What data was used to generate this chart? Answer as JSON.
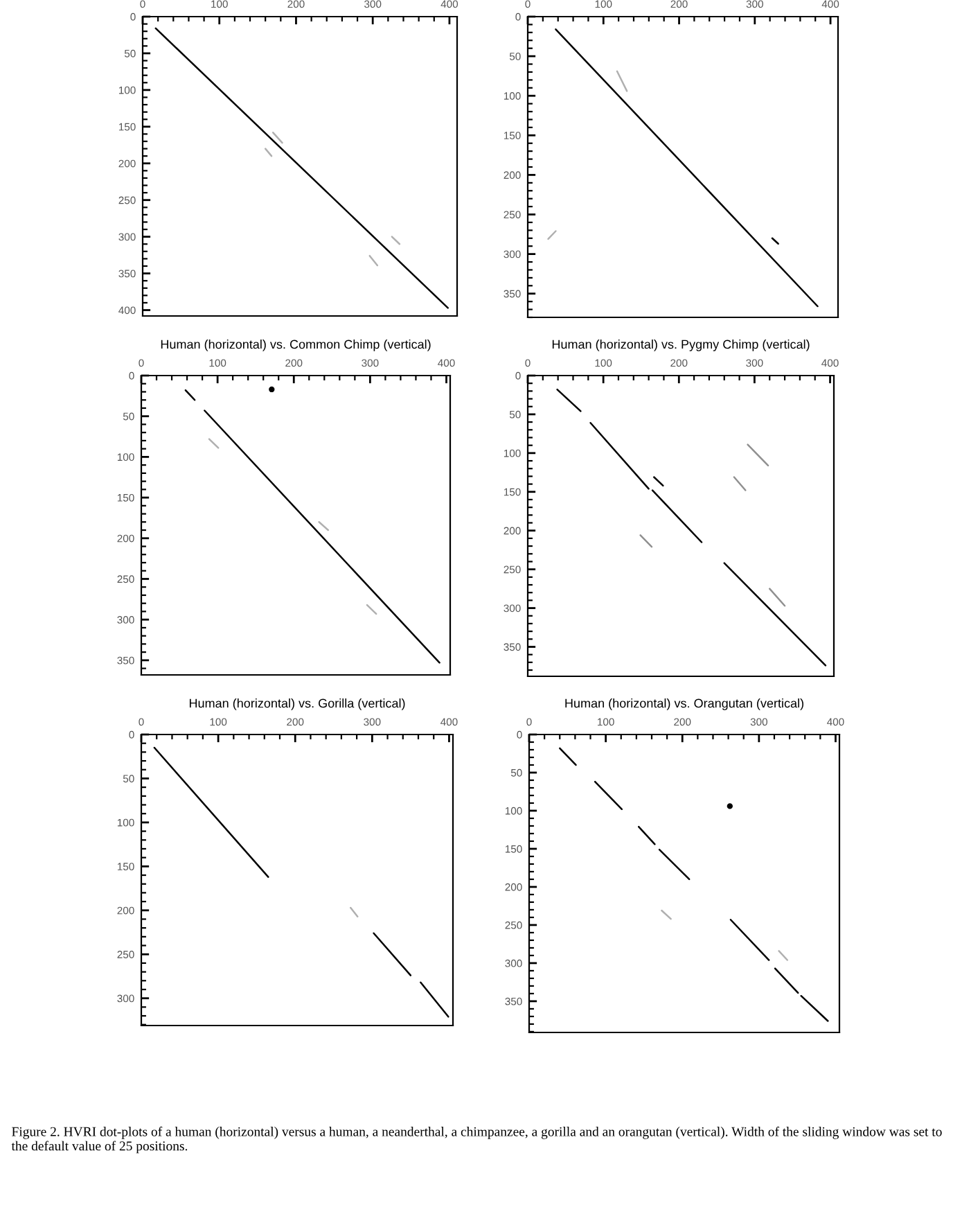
{
  "chart_data": [
    {
      "type": "line",
      "xlim": [
        0,
        410
      ],
      "ylim": [
        408,
        0
      ],
      "xticks": [
        0,
        100,
        200,
        300,
        400
      ],
      "yticks": [
        0,
        50,
        100,
        150,
        200,
        250,
        300,
        350,
        400
      ],
      "series": [
        {
          "color": "#000000",
          "x": [
            17,
            398
          ],
          "values": [
            16,
            397
          ]
        },
        {
          "color": "#b0b0b0",
          "x": [
            160,
            168
          ],
          "values": [
            180,
            190
          ]
        },
        {
          "color": "#b0b0b0",
          "x": [
            170,
            182
          ],
          "values": [
            158,
            172
          ]
        },
        {
          "color": "#b0b0b0",
          "x": [
            325,
            335
          ],
          "values": [
            300,
            310
          ]
        },
        {
          "color": "#b0b0b0",
          "x": [
            296,
            306
          ],
          "values": [
            326,
            339
          ]
        }
      ]
    },
    {
      "type": "line",
      "xlim": [
        0,
        410
      ],
      "ylim": [
        380,
        0
      ],
      "xticks": [
        0,
        100,
        200,
        300,
        400
      ],
      "yticks": [
        0,
        50,
        100,
        150,
        200,
        250,
        300,
        350
      ],
      "series": [
        {
          "color": "#000000",
          "x": [
            37,
            383
          ],
          "values": [
            16,
            366
          ]
        },
        {
          "color": "#000000",
          "x": [
            323,
            331
          ],
          "values": [
            280,
            287
          ]
        },
        {
          "color": "#b0b0b0",
          "x": [
            118,
            131
          ],
          "values": [
            69,
            94
          ]
        },
        {
          "color": "#b0b0b0",
          "x": [
            27,
            37
          ],
          "values": [
            281,
            271
          ]
        }
      ]
    },
    {
      "type": "line",
      "title": "Human (horizontal) vs. Common Chimp (vertical)",
      "xlim": [
        0,
        405
      ],
      "ylim": [
        368,
        0
      ],
      "xticks": [
        0,
        100,
        200,
        300,
        400
      ],
      "yticks": [
        0,
        50,
        100,
        150,
        200,
        250,
        300,
        350
      ],
      "series": [
        {
          "color": "#000000",
          "x": [
            58,
            70
          ],
          "values": [
            18,
            30
          ]
        },
        {
          "color": "#000000",
          "x": [
            83,
            391
          ],
          "values": [
            43,
            353
          ]
        },
        {
          "color": "#000000",
          "type": "scatter",
          "x": [
            171
          ],
          "values": [
            17
          ]
        },
        {
          "color": "#b0b0b0",
          "x": [
            89,
            101
          ],
          "values": [
            78,
            89
          ]
        },
        {
          "color": "#b0b0b0",
          "x": [
            233,
            245
          ],
          "values": [
            180,
            190
          ]
        },
        {
          "color": "#b0b0b0",
          "x": [
            296,
            308
          ],
          "values": [
            282,
            293
          ]
        }
      ]
    },
    {
      "type": "line",
      "title": "Human (horizontal) vs. Pygmy Chimp (vertical)",
      "xlim": [
        0,
        405
      ],
      "ylim": [
        388,
        0
      ],
      "xticks": [
        0,
        100,
        200,
        300,
        400
      ],
      "yticks": [
        0,
        50,
        100,
        150,
        200,
        250,
        300,
        350
      ],
      "series": [
        {
          "color": "#000000",
          "x": [
            39,
            70
          ],
          "values": [
            18,
            46
          ]
        },
        {
          "color": "#000000",
          "x": [
            83,
            160
          ],
          "values": [
            61,
            146
          ]
        },
        {
          "color": "#000000",
          "x": [
            165,
            230
          ],
          "values": [
            148,
            215
          ]
        },
        {
          "color": "#000000",
          "x": [
            260,
            394
          ],
          "values": [
            242,
            374
          ]
        },
        {
          "color": "#000000",
          "x": [
            167,
            179
          ],
          "values": [
            131,
            142
          ]
        },
        {
          "color": "#909090",
          "x": [
            291,
            318
          ],
          "values": [
            89,
            116
          ]
        },
        {
          "color": "#909090",
          "x": [
            273,
            288
          ],
          "values": [
            131,
            148
          ]
        },
        {
          "color": "#909090",
          "x": [
            320,
            340
          ],
          "values": [
            275,
            297
          ]
        },
        {
          "color": "#909090",
          "x": [
            149,
            164
          ],
          "values": [
            206,
            221
          ]
        }
      ]
    },
    {
      "type": "line",
      "title": "Human (horizontal) vs. Gorilla (vertical)",
      "xlim": [
        0,
        405
      ],
      "ylim": [
        331,
        0
      ],
      "xticks": [
        0,
        100,
        200,
        300,
        400
      ],
      "yticks": [
        0,
        50,
        100,
        150,
        200,
        250,
        300
      ],
      "series": [
        {
          "color": "#000000",
          "x": [
            17,
            165
          ],
          "values": [
            15,
            162
          ]
        },
        {
          "color": "#000000",
          "x": [
            302,
            350
          ],
          "values": [
            226,
            274
          ]
        },
        {
          "color": "#000000",
          "x": [
            363,
            399
          ],
          "values": [
            282,
            321
          ]
        },
        {
          "color": "#b0b0b0",
          "x": [
            272,
            281
          ],
          "values": [
            197,
            207
          ]
        }
      ]
    },
    {
      "type": "line",
      "title": "Human (horizontal) vs. Orangutan (vertical)",
      "xlim": [
        0,
        405
      ],
      "ylim": [
        391,
        0
      ],
      "xticks": [
        0,
        100,
        200,
        300,
        400
      ],
      "yticks": [
        0,
        50,
        100,
        150,
        200,
        250,
        300,
        350
      ],
      "annotations": [
        "Figure 2. HVRI dot-plots of a human (horizontal) versus a human, a neanderthal, a chimpanzee, a gorilla and an orangutan (vertical). Width of the sliding window was set to the default value of 25 positions."
      ],
      "series": [
        {
          "color": "#000000",
          "x": [
            40,
            61
          ],
          "values": [
            18,
            40
          ]
        },
        {
          "color": "#000000",
          "x": [
            86,
            121
          ],
          "values": [
            62,
            98
          ]
        },
        {
          "color": "#000000",
          "x": [
            143,
            164
          ],
          "values": [
            121,
            144
          ]
        },
        {
          "color": "#000000",
          "x": [
            170,
            209
          ],
          "values": [
            151,
            190
          ]
        },
        {
          "color": "#000000",
          "x": [
            263,
            313
          ],
          "values": [
            243,
            296
          ]
        },
        {
          "color": "#000000",
          "x": [
            321,
            351
          ],
          "values": [
            307,
            339
          ]
        },
        {
          "color": "#000000",
          "x": [
            355,
            390
          ],
          "values": [
            343,
            376
          ]
        },
        {
          "color": "#000000",
          "type": "scatter",
          "x": [
            262
          ],
          "values": [
            94
          ]
        },
        {
          "color": "#b0b0b0",
          "x": [
            173,
            185
          ],
          "values": [
            231,
            242
          ]
        },
        {
          "color": "#b0b0b0",
          "x": [
            326,
            337
          ],
          "values": [
            284,
            296
          ]
        }
      ]
    }
  ]
}
